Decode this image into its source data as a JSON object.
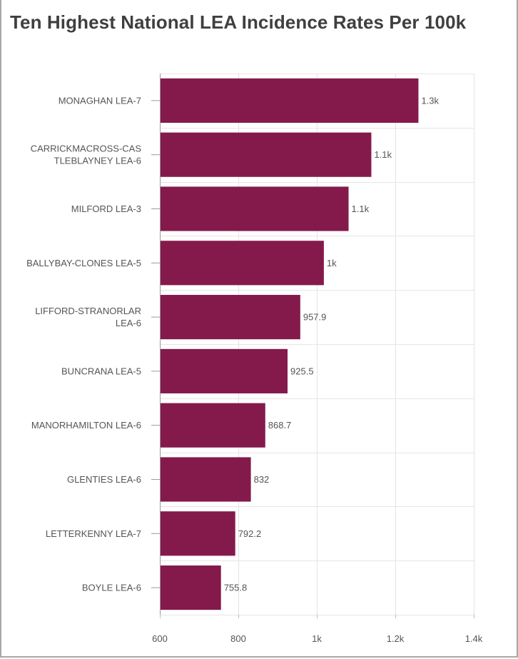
{
  "chart_data": {
    "type": "bar",
    "orientation": "horizontal",
    "title": "Ten Highest National LEA Incidence Rates Per 100k",
    "categories": [
      [
        "MONAGHAN LEA-7"
      ],
      [
        "CARRICKMACROSS-CAS",
        "TLEBLAYNEY LEA-6"
      ],
      [
        "MILFORD LEA-3"
      ],
      [
        "BALLYBAY-CLONES LEA-5"
      ],
      [
        "LIFFORD-STRANORLAR",
        "LEA-6"
      ],
      [
        "BUNCRANA LEA-5"
      ],
      [
        "MANORHAMILTON LEA-6"
      ],
      [
        "GLENTIES LEA-6"
      ],
      [
        "LETTERKENNY LEA-7"
      ],
      [
        "BOYLE LEA-6"
      ]
    ],
    "values": [
      1259,
      1139,
      1081,
      1018,
      957.9,
      925.5,
      868.7,
      832,
      792.2,
      755.8
    ],
    "data_labels": [
      "1.3k",
      "1.1k",
      "1.1k",
      "1k",
      "957.9",
      "925.5",
      "868.7",
      "832",
      "792.2",
      "755.8"
    ],
    "xlim": [
      600,
      1400
    ],
    "x_ticks": [
      600,
      800,
      1000,
      1200,
      1400
    ],
    "x_tick_labels": [
      "600",
      "800",
      "1k",
      "1.2k",
      "1.4k"
    ],
    "bar_color": "#841a4b",
    "grid": true
  }
}
